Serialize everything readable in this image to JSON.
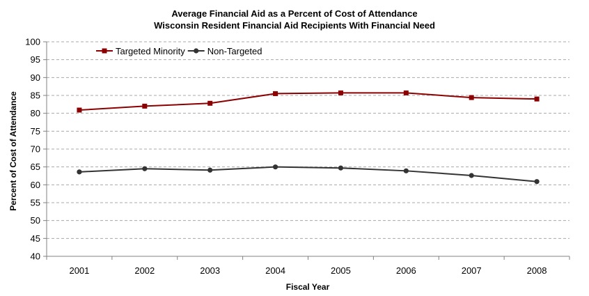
{
  "chart_data": {
    "type": "line",
    "title": "Average Financial Aid as a Percent of Cost of Attendance",
    "subtitle": "Wisconsin Resident Financial Aid Recipients With Financial Need",
    "xlabel": "Fiscal Year",
    "ylabel": "Percent of Cost of Attendance",
    "categories": [
      "2001",
      "2002",
      "2003",
      "2004",
      "2005",
      "2006",
      "2007",
      "2008"
    ],
    "ylim": [
      40,
      100
    ],
    "yticks": [
      40,
      45,
      50,
      55,
      60,
      65,
      70,
      75,
      80,
      85,
      90,
      95,
      100
    ],
    "grid": true,
    "legend_position": "top-left",
    "series": [
      {
        "name": "Targeted Minority",
        "values": [
          80.9,
          82.0,
          82.8,
          85.5,
          85.7,
          85.7,
          84.4,
          84.0
        ],
        "color": "#8b0000",
        "marker": "square"
      },
      {
        "name": "Non-Targeted",
        "values": [
          63.6,
          64.5,
          64.1,
          65.0,
          64.7,
          63.9,
          62.6,
          60.9
        ],
        "color": "#333333",
        "marker": "circle"
      }
    ]
  }
}
